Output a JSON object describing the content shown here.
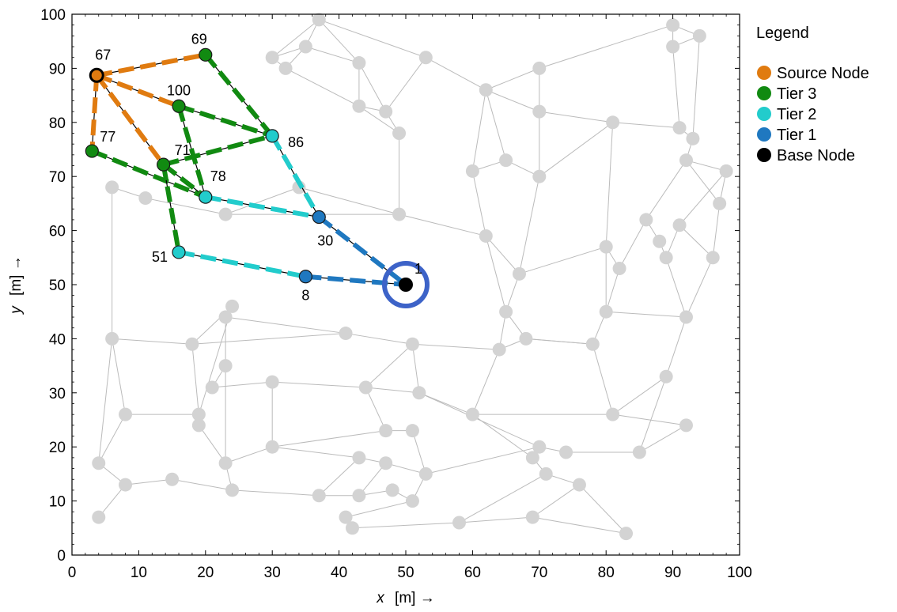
{
  "chart_data": {
    "type": "scatter",
    "xlabel_var": "x",
    "xlabel_unit": "[m] →",
    "ylabel_var": "y",
    "ylabel_unit": "[m] →",
    "xlim": [
      0,
      100
    ],
    "ylim": [
      0,
      100
    ],
    "xticks": [
      "0",
      "10",
      "20",
      "30",
      "40",
      "50",
      "60",
      "70",
      "80",
      "90",
      "100"
    ],
    "yticks": [
      "0",
      "10",
      "20",
      "30",
      "40",
      "50",
      "60",
      "70",
      "80",
      "90",
      "100"
    ],
    "grid": false,
    "legend": {
      "title": "Legend",
      "placement": "outside-top-right",
      "entries": [
        {
          "label": "Source Node",
          "color": "#e07b10"
        },
        {
          "label": "Tier 3",
          "color": "#118a11"
        },
        {
          "label": "Tier 2",
          "color": "#22cccc"
        },
        {
          "label": "Tier 1",
          "color": "#1f78c0"
        },
        {
          "label": "Base Node",
          "color": "#000000"
        }
      ]
    },
    "colors": {
      "background_node": "#d3d3d3",
      "background_edge": "#bbbbbb",
      "base_ring": "#3d63c8",
      "source": "#e07b10",
      "tier3": "#118a11",
      "tier2": "#22cccc",
      "tier1": "#1f78c0",
      "base": "#000000"
    },
    "background_nodes": [
      [
        37,
        99
      ],
      [
        30,
        92
      ],
      [
        35,
        94
      ],
      [
        32,
        90
      ],
      [
        43,
        91
      ],
      [
        53,
        92
      ],
      [
        70,
        90
      ],
      [
        90,
        98
      ],
      [
        94,
        96
      ],
      [
        90,
        94
      ],
      [
        43,
        83
      ],
      [
        47,
        82
      ],
      [
        62,
        86
      ],
      [
        70,
        82
      ],
      [
        81,
        80
      ],
      [
        91,
        79
      ],
      [
        93,
        77
      ],
      [
        49,
        78
      ],
      [
        92,
        73
      ],
      [
        98,
        71
      ],
      [
        60,
        71
      ],
      [
        65,
        73
      ],
      [
        70,
        70
      ],
      [
        34,
        68
      ],
      [
        6,
        68
      ],
      [
        11,
        66
      ],
      [
        23,
        63
      ],
      [
        49,
        63
      ],
      [
        62,
        59
      ],
      [
        67,
        52
      ],
      [
        80,
        57
      ],
      [
        82,
        53
      ],
      [
        86,
        62
      ],
      [
        88,
        58
      ],
      [
        89,
        55
      ],
      [
        91,
        61
      ],
      [
        96,
        55
      ],
      [
        97,
        65
      ],
      [
        65,
        45
      ],
      [
        80,
        45
      ],
      [
        92,
        44
      ],
      [
        41,
        41
      ],
      [
        51,
        39
      ],
      [
        64,
        38
      ],
      [
        68,
        40
      ],
      [
        78,
        39
      ],
      [
        6,
        40
      ],
      [
        18,
        39
      ],
      [
        24,
        46
      ],
      [
        23,
        44
      ],
      [
        23,
        35
      ],
      [
        21,
        31
      ],
      [
        30,
        32
      ],
      [
        44,
        31
      ],
      [
        52,
        30
      ],
      [
        60,
        26
      ],
      [
        89,
        33
      ],
      [
        81,
        26
      ],
      [
        92,
        24
      ],
      [
        8,
        26
      ],
      [
        19,
        26
      ],
      [
        19,
        24
      ],
      [
        47,
        23
      ],
      [
        51,
        23
      ],
      [
        23,
        17
      ],
      [
        30,
        20
      ],
      [
        43,
        18
      ],
      [
        47,
        17
      ],
      [
        53,
        15
      ],
      [
        70,
        20
      ],
      [
        74,
        19
      ],
      [
        85,
        19
      ],
      [
        69,
        18
      ],
      [
        4,
        17
      ],
      [
        8,
        13
      ],
      [
        15,
        14
      ],
      [
        24,
        12
      ],
      [
        37,
        11
      ],
      [
        43,
        11
      ],
      [
        48,
        12
      ],
      [
        51,
        10
      ],
      [
        71,
        15
      ],
      [
        76,
        13
      ],
      [
        4,
        7
      ],
      [
        41,
        7
      ],
      [
        42,
        5
      ],
      [
        58,
        6
      ],
      [
        69,
        7
      ],
      [
        83,
        4
      ]
    ],
    "background_edges": [
      [
        0,
        1
      ],
      [
        0,
        2
      ],
      [
        0,
        4
      ],
      [
        0,
        5
      ],
      [
        1,
        2
      ],
      [
        1,
        3
      ],
      [
        2,
        3
      ],
      [
        2,
        4
      ],
      [
        3,
        10
      ],
      [
        4,
        10
      ],
      [
        4,
        11
      ],
      [
        5,
        11
      ],
      [
        5,
        12
      ],
      [
        6,
        12
      ],
      [
        6,
        13
      ],
      [
        6,
        7
      ],
      [
        7,
        8
      ],
      [
        7,
        9
      ],
      [
        8,
        9
      ],
      [
        9,
        15
      ],
      [
        8,
        16
      ],
      [
        10,
        11
      ],
      [
        10,
        17
      ],
      [
        11,
        17
      ],
      [
        12,
        13
      ],
      [
        12,
        20
      ],
      [
        12,
        21
      ],
      [
        13,
        14
      ],
      [
        14,
        15
      ],
      [
        15,
        16
      ],
      [
        16,
        18
      ],
      [
        18,
        19
      ],
      [
        14,
        22
      ],
      [
        13,
        22
      ],
      [
        20,
        21
      ],
      [
        21,
        22
      ],
      [
        17,
        27
      ],
      [
        20,
        28
      ],
      [
        22,
        29
      ],
      [
        23,
        27
      ],
      [
        24,
        25
      ],
      [
        25,
        26
      ],
      [
        26,
        27
      ],
      [
        27,
        28
      ],
      [
        28,
        29
      ],
      [
        29,
        30
      ],
      [
        30,
        31
      ],
      [
        31,
        32
      ],
      [
        32,
        33
      ],
      [
        33,
        34
      ],
      [
        34,
        35
      ],
      [
        35,
        36
      ],
      [
        36,
        37
      ],
      [
        37,
        19
      ],
      [
        19,
        35
      ],
      [
        18,
        32
      ],
      [
        30,
        14
      ],
      [
        28,
        38
      ],
      [
        29,
        38
      ],
      [
        31,
        39
      ],
      [
        39,
        40
      ],
      [
        34,
        40
      ],
      [
        38,
        43
      ],
      [
        38,
        44
      ],
      [
        43,
        44
      ],
      [
        44,
        45
      ],
      [
        45,
        39
      ],
      [
        41,
        42
      ],
      [
        42,
        43
      ],
      [
        41,
        49
      ],
      [
        41,
        47
      ],
      [
        46,
        47
      ],
      [
        47,
        48
      ],
      [
        48,
        49
      ],
      [
        49,
        50
      ],
      [
        50,
        51
      ],
      [
        51,
        52
      ],
      [
        52,
        53
      ],
      [
        53,
        54
      ],
      [
        54,
        55
      ],
      [
        55,
        57
      ],
      [
        57,
        58
      ],
      [
        56,
        57
      ],
      [
        56,
        40
      ],
      [
        45,
        57
      ],
      [
        59,
        60
      ],
      [
        60,
        61
      ],
      [
        61,
        64
      ],
      [
        59,
        46
      ],
      [
        59,
        73
      ],
      [
        62,
        63
      ],
      [
        63,
        68
      ],
      [
        62,
        65
      ],
      [
        65,
        66
      ],
      [
        66,
        67
      ],
      [
        67,
        68
      ],
      [
        68,
        69
      ],
      [
        69,
        70
      ],
      [
        70,
        71
      ],
      [
        71,
        58
      ],
      [
        72,
        69
      ],
      [
        72,
        81
      ],
      [
        81,
        82
      ],
      [
        82,
        88
      ],
      [
        73,
        74
      ],
      [
        74,
        75
      ],
      [
        75,
        76
      ],
      [
        76,
        77
      ],
      [
        77,
        78
      ],
      [
        78,
        79
      ],
      [
        79,
        80
      ],
      [
        80,
        84
      ],
      [
        83,
        74
      ],
      [
        84,
        85
      ],
      [
        85,
        86
      ],
      [
        86,
        87
      ],
      [
        87,
        88
      ],
      [
        64,
        76
      ],
      [
        64,
        65
      ],
      [
        53,
        62
      ],
      [
        52,
        65
      ],
      [
        50,
        64
      ],
      [
        42,
        53
      ],
      [
        42,
        54
      ],
      [
        54,
        69
      ],
      [
        55,
        72
      ],
      [
        56,
        71
      ],
      [
        43,
        55
      ],
      [
        44,
        45
      ],
      [
        77,
        66
      ],
      [
        78,
        67
      ],
      [
        80,
        68
      ],
      [
        86,
        81
      ],
      [
        87,
        82
      ],
      [
        26,
        23
      ],
      [
        24,
        46
      ],
      [
        46,
        73
      ],
      [
        47,
        60
      ],
      [
        60,
        48
      ],
      [
        30,
        39
      ],
      [
        36,
        40
      ],
      [
        18,
        37
      ]
    ],
    "path_nodes": [
      {
        "label": "67",
        "x": 3.7,
        "y": 88.7,
        "tier": "source"
      },
      {
        "label": "69",
        "x": 20,
        "y": 92.5,
        "tier": "tier3"
      },
      {
        "label": "100",
        "x": 16,
        "y": 83,
        "tier": "tier3"
      },
      {
        "label": "77",
        "x": 3,
        "y": 74.7,
        "tier": "tier3"
      },
      {
        "label": "71",
        "x": 13.7,
        "y": 72.2,
        "tier": "tier3"
      },
      {
        "label": "86",
        "x": 30,
        "y": 77.5,
        "tier": "tier2"
      },
      {
        "label": "78",
        "x": 20,
        "y": 66.2,
        "tier": "tier2"
      },
      {
        "label": "51",
        "x": 16,
        "y": 56,
        "tier": "tier2"
      },
      {
        "label": "30",
        "x": 37,
        "y": 62.5,
        "tier": "tier1"
      },
      {
        "label": "8",
        "x": 35,
        "y": 51.5,
        "tier": "tier1"
      },
      {
        "label": "1",
        "x": 50,
        "y": 50,
        "tier": "base"
      }
    ],
    "path_edges": [
      {
        "from": 0,
        "to": 1,
        "tier": "source"
      },
      {
        "from": 0,
        "to": 2,
        "tier": "source"
      },
      {
        "from": 0,
        "to": 3,
        "tier": "source"
      },
      {
        "from": 0,
        "to": 4,
        "tier": "source"
      },
      {
        "from": 1,
        "to": 5,
        "tier": "tier3"
      },
      {
        "from": 2,
        "to": 5,
        "tier": "tier3"
      },
      {
        "from": 2,
        "to": 6,
        "tier": "tier3"
      },
      {
        "from": 3,
        "to": 6,
        "tier": "tier3"
      },
      {
        "from": 4,
        "to": 5,
        "tier": "tier3"
      },
      {
        "from": 4,
        "to": 6,
        "tier": "tier3"
      },
      {
        "from": 4,
        "to": 7,
        "tier": "tier3"
      },
      {
        "from": 5,
        "to": 8,
        "tier": "tier2"
      },
      {
        "from": 6,
        "to": 8,
        "tier": "tier2"
      },
      {
        "from": 7,
        "to": 9,
        "tier": "tier2"
      },
      {
        "from": 8,
        "to": 10,
        "tier": "tier1"
      },
      {
        "from": 9,
        "to": 10,
        "tier": "tier1"
      }
    ]
  }
}
